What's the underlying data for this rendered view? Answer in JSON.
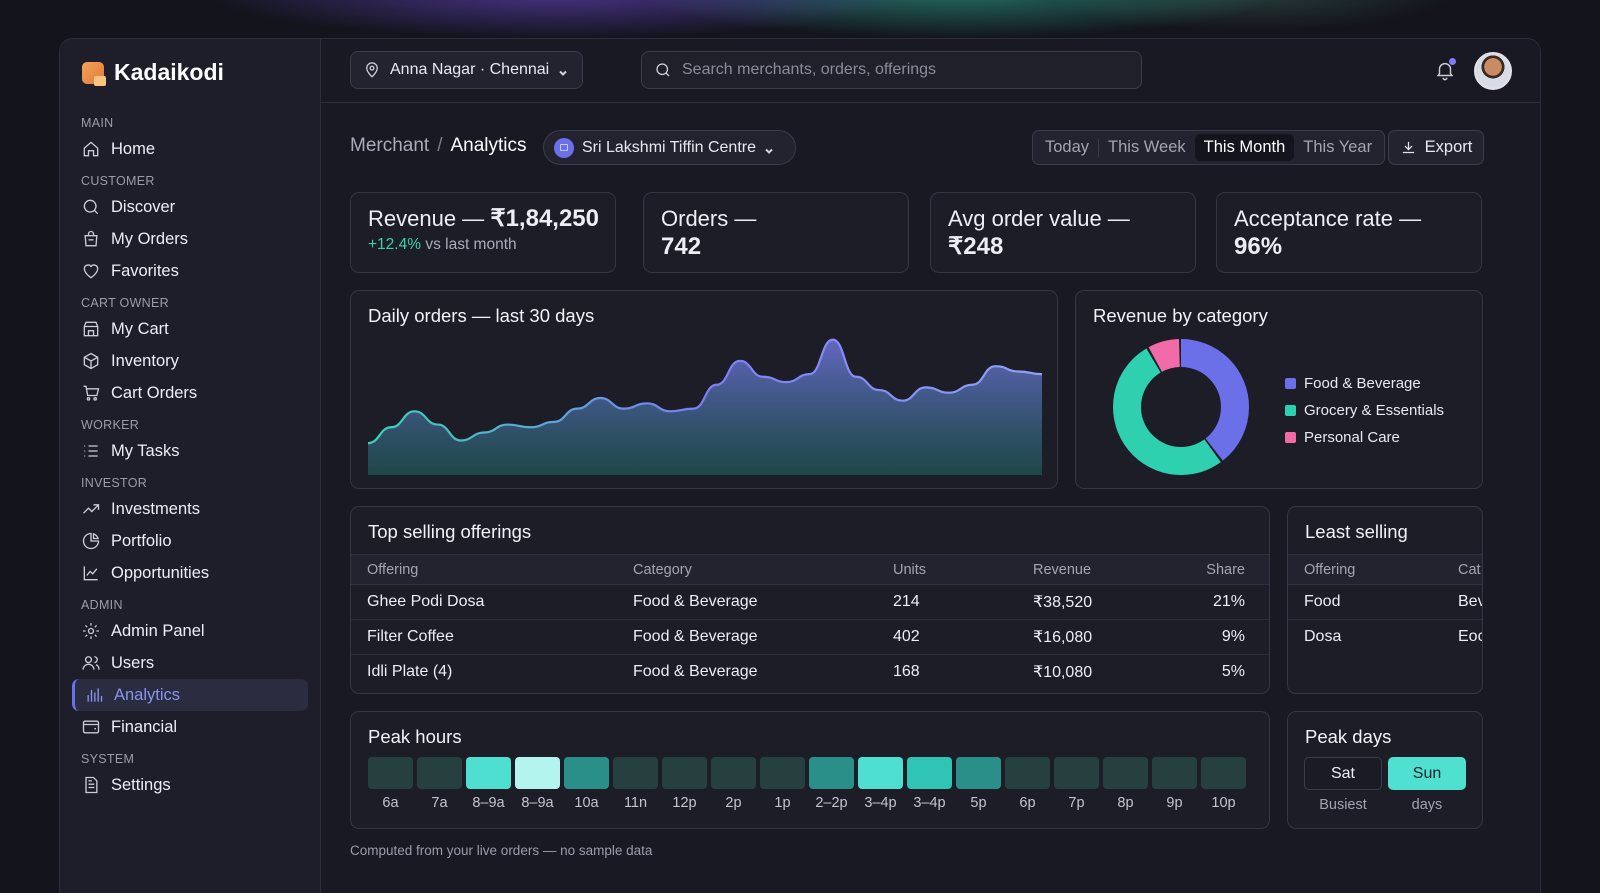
{
  "brand": {
    "name": "Kadaikodi"
  },
  "sidebar": {
    "sections": [
      {
        "title": "MAIN",
        "items": [
          {
            "label": "Home",
            "icon": "home-icon"
          }
        ]
      },
      {
        "title": "CUSTOMER",
        "items": [
          {
            "label": "Discover",
            "icon": "search-icon"
          },
          {
            "label": "My Orders",
            "icon": "bag-icon"
          },
          {
            "label": "Favorites",
            "icon": "heart-icon"
          }
        ]
      },
      {
        "title": "CART OWNER",
        "items": [
          {
            "label": "My Cart",
            "icon": "store-icon"
          },
          {
            "label": "Inventory",
            "icon": "box-icon"
          },
          {
            "label": "Cart Orders",
            "icon": "cart-icon"
          }
        ]
      },
      {
        "title": "WORKER",
        "items": [
          {
            "label": "My Tasks",
            "icon": "list-icon"
          }
        ]
      },
      {
        "title": "INVESTOR",
        "items": [
          {
            "label": "Investments",
            "icon": "trend-icon"
          },
          {
            "label": "Portfolio",
            "icon": "pie-icon"
          },
          {
            "label": "Opportunities",
            "icon": "chart-line-icon"
          }
        ]
      },
      {
        "title": "ADMIN",
        "items": [
          {
            "label": "Admin Panel",
            "icon": "gear-icon"
          },
          {
            "label": "Users",
            "icon": "users-icon"
          },
          {
            "label": "Analytics",
            "icon": "bars-icon",
            "active": true
          },
          {
            "label": "Financial",
            "icon": "wallet-icon"
          }
        ]
      },
      {
        "title": "SYSTEM",
        "items": [
          {
            "label": "Settings",
            "icon": "doc-icon"
          }
        ]
      }
    ]
  },
  "topbar": {
    "location": "Anna Nagar · Chennai",
    "search_placeholder": "Search merchants, orders, offerings"
  },
  "breadcrumb": {
    "parent": "Merchant",
    "separator": "/",
    "current": "Analytics"
  },
  "merchant_select": {
    "value": "Sri Lakshmi Tiffin Centre"
  },
  "range_tabs": {
    "options": [
      "Today",
      "This Week",
      "This Month",
      "This Year"
    ],
    "selected": "This Month"
  },
  "export_label": "Export",
  "kpis": [
    {
      "label": "Revenue —",
      "value": "₹1,84,250",
      "delta": "+12.4%",
      "delta_suffix": "vs last month"
    },
    {
      "label": "Orders —",
      "value": "742"
    },
    {
      "label": "Avg order value —",
      "value": "₹248"
    },
    {
      "label": "Acceptance rate —",
      "value": "96%"
    }
  ],
  "daily_orders": {
    "title": "Daily orders — last 30 days",
    "chart_data": {
      "type": "area",
      "title": "Daily orders — last 30 days",
      "x": [
        1,
        2,
        3,
        4,
        5,
        6,
        7,
        8,
        9,
        10,
        11,
        12,
        13,
        14,
        15,
        16,
        17,
        18,
        19,
        20,
        21,
        22,
        23,
        24,
        25,
        26,
        27,
        28,
        29,
        30
      ],
      "values": [
        12,
        18,
        24,
        19,
        13,
        16,
        19,
        18,
        20,
        25,
        29,
        25,
        27,
        24,
        25,
        34,
        43,
        37,
        35,
        38,
        51,
        37,
        32,
        28,
        33,
        31,
        34,
        41,
        39,
        38
      ],
      "color": "#7b7ff5",
      "fill_bottom": "#1f6a63"
    }
  },
  "revenue_by_category": {
    "title": "Revenue by category",
    "chart_data": {
      "type": "pie",
      "title": "Revenue by category",
      "categories": [
        "Food & Beverage",
        "Grocery & Essentials",
        "Personal Care"
      ],
      "values": [
        40,
        52,
        8
      ],
      "colors": [
        "#6c70e8",
        "#2fd0b0",
        "#f06ba8"
      ]
    }
  },
  "top_selling": {
    "title": "Top selling offerings",
    "columns": [
      "Offering",
      "Category",
      "Units",
      "Revenue",
      "Share"
    ],
    "rows": [
      [
        "Ghee Podi Dosa",
        "Food & Beverage",
        "214",
        "₹38,520",
        "21%"
      ],
      [
        "Filter Coffee",
        "Food & Beverage",
        "402",
        "₹16,080",
        "9%"
      ],
      [
        "Idli Plate (4)",
        "Food & Beverage",
        "168",
        "₹10,080",
        "5%"
      ]
    ]
  },
  "least_selling": {
    "title": "Least selling",
    "columns": [
      "Offering",
      "Cat"
    ],
    "rows": [
      [
        "Food",
        "Bev"
      ],
      [
        "Dosa",
        "Eoc"
      ]
    ]
  },
  "peak_hours": {
    "title": "Peak hours",
    "labels": [
      "6a",
      "7a",
      "8–9a",
      "8–9a",
      "10a",
      "11n",
      "12p",
      "2p",
      "1p",
      "2–2p",
      "3–4p",
      "3–4p",
      "5p",
      "6p",
      "7p",
      "8p",
      "9p",
      "10p"
    ],
    "intensity": [
      0.2,
      0.2,
      0.8,
      1.0,
      0.5,
      0.15,
      0.15,
      0.15,
      0.15,
      0.45,
      0.85,
      0.75,
      0.45,
      0.15,
      0.15,
      0.15,
      0.15,
      0.15
    ]
  },
  "peak_days": {
    "title": "Peak days",
    "items": [
      {
        "value": "Sat",
        "caption": "Busiest"
      },
      {
        "value": "Sun",
        "caption": "days"
      }
    ]
  },
  "footnote": "Computed from your live orders — no sample data"
}
